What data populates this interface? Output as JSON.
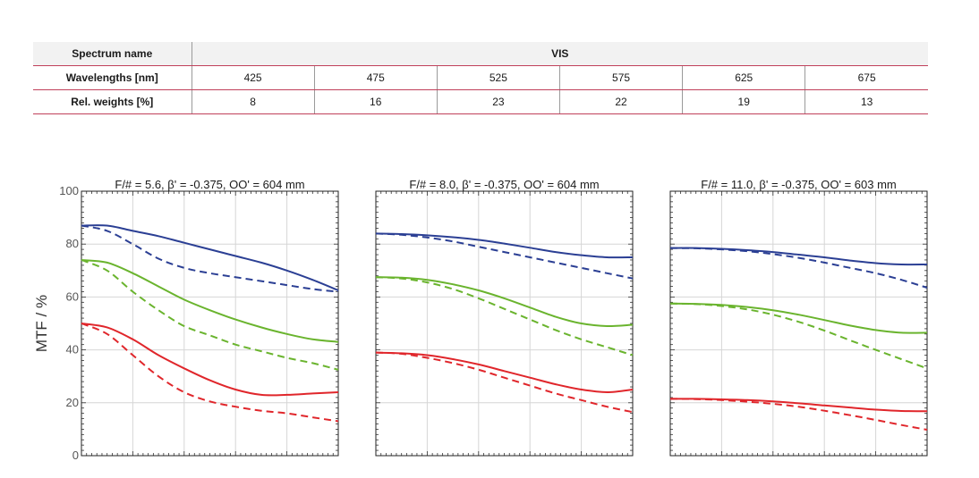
{
  "table": {
    "spectrum_label": "Spectrum name",
    "spectrum_value": "VIS",
    "wavelengths_label": "Wavelengths [nm]",
    "wavelengths": [
      "425",
      "475",
      "525",
      "575",
      "625",
      "675"
    ],
    "weights_label": "Rel. weights [%]",
    "weights": [
      "8",
      "16",
      "23",
      "22",
      "19",
      "13"
    ]
  },
  "chart_data": [
    {
      "type": "line",
      "title": "F/# = 5.6, β' = -0.375, OO' = 604 mm",
      "ylabel": "MTF / %",
      "ylim": [
        0,
        100
      ],
      "yticks": [
        "0",
        "20",
        "40",
        "60",
        "80",
        "100"
      ],
      "grid": true,
      "series": [
        {
          "color": "#2b3f94",
          "dash": false,
          "x": [
            0,
            0.1,
            0.2,
            0.3,
            0.4,
            0.5,
            0.6,
            0.7,
            0.8,
            0.9,
            1
          ],
          "values": [
            87,
            87,
            85,
            83,
            80.5,
            78,
            75.5,
            73,
            70,
            66.5,
            62.5
          ]
        },
        {
          "color": "#2b3f94",
          "dash": true,
          "x": [
            0,
            0.1,
            0.2,
            0.3,
            0.4,
            0.5,
            0.6,
            0.7,
            0.8,
            0.9,
            1
          ],
          "values": [
            87,
            85,
            80,
            74.5,
            71,
            69,
            67.5,
            66,
            64.5,
            63,
            62
          ]
        },
        {
          "color": "#6ab42e",
          "dash": false,
          "x": [
            0,
            0.1,
            0.2,
            0.3,
            0.4,
            0.5,
            0.6,
            0.7,
            0.8,
            0.9,
            1
          ],
          "values": [
            74,
            73,
            69,
            64,
            59,
            55,
            51.5,
            48.5,
            46,
            44,
            43
          ]
        },
        {
          "color": "#6ab42e",
          "dash": true,
          "x": [
            0,
            0.1,
            0.2,
            0.3,
            0.4,
            0.5,
            0.6,
            0.7,
            0.8,
            0.9,
            1
          ],
          "values": [
            74,
            70,
            62,
            55,
            49,
            45.5,
            42,
            39.5,
            37,
            35,
            32.5
          ]
        },
        {
          "color": "#e0262b",
          "dash": false,
          "x": [
            0,
            0.1,
            0.2,
            0.3,
            0.4,
            0.5,
            0.6,
            0.7,
            0.8,
            0.9,
            1
          ],
          "values": [
            50,
            48.5,
            44,
            38,
            33,
            28.5,
            25,
            23,
            23,
            23.5,
            24
          ]
        },
        {
          "color": "#e0262b",
          "dash": true,
          "x": [
            0,
            0.1,
            0.2,
            0.3,
            0.4,
            0.5,
            0.6,
            0.7,
            0.8,
            0.9,
            1
          ],
          "values": [
            50,
            46,
            38,
            30,
            24,
            20.5,
            18.5,
            17,
            16,
            14.5,
            13
          ]
        }
      ]
    },
    {
      "type": "line",
      "title": "F/# = 8.0, β' = -0.375, OO' = 604 mm",
      "ylim": [
        0,
        100
      ],
      "grid": true,
      "series": [
        {
          "color": "#2b3f94",
          "dash": false,
          "x": [
            0,
            0.1,
            0.2,
            0.3,
            0.4,
            0.5,
            0.6,
            0.7,
            0.8,
            0.9,
            1
          ],
          "values": [
            84,
            83.8,
            83.3,
            82.6,
            81.6,
            80.2,
            78.6,
            77,
            75.8,
            75,
            75
          ]
        },
        {
          "color": "#2b3f94",
          "dash": true,
          "x": [
            0,
            0.1,
            0.2,
            0.3,
            0.4,
            0.5,
            0.6,
            0.7,
            0.8,
            0.9,
            1
          ],
          "values": [
            84,
            83.5,
            82.5,
            81,
            79,
            77,
            75,
            73,
            71,
            69,
            67
          ]
        },
        {
          "color": "#6ab42e",
          "dash": false,
          "x": [
            0,
            0.1,
            0.2,
            0.3,
            0.4,
            0.5,
            0.6,
            0.7,
            0.8,
            0.9,
            1
          ],
          "values": [
            67.5,
            67.3,
            66.5,
            64.8,
            62.5,
            59.5,
            56,
            52.5,
            50,
            49,
            49.5
          ]
        },
        {
          "color": "#6ab42e",
          "dash": true,
          "x": [
            0,
            0.1,
            0.2,
            0.3,
            0.4,
            0.5,
            0.6,
            0.7,
            0.8,
            0.9,
            1
          ],
          "values": [
            67.5,
            67,
            65.5,
            63,
            59.5,
            55.5,
            51.5,
            47.5,
            44,
            41,
            38
          ]
        },
        {
          "color": "#e0262b",
          "dash": false,
          "x": [
            0,
            0.1,
            0.2,
            0.3,
            0.4,
            0.5,
            0.6,
            0.7,
            0.8,
            0.9,
            1
          ],
          "values": [
            39,
            38.7,
            38,
            36.5,
            34.5,
            32,
            29.5,
            27,
            25,
            24,
            25
          ]
        },
        {
          "color": "#e0262b",
          "dash": true,
          "x": [
            0,
            0.1,
            0.2,
            0.3,
            0.4,
            0.5,
            0.6,
            0.7,
            0.8,
            0.9,
            1
          ],
          "values": [
            39,
            38.5,
            37,
            35,
            32.5,
            29.5,
            26.5,
            23.5,
            21,
            18.5,
            16.5
          ]
        }
      ]
    },
    {
      "type": "line",
      "title": "F/# = 11.0, β' = -0.375, OO' = 603 mm",
      "ylim": [
        0,
        100
      ],
      "grid": true,
      "series": [
        {
          "color": "#2b3f94",
          "dash": false,
          "x": [
            0,
            0.1,
            0.2,
            0.3,
            0.4,
            0.5,
            0.6,
            0.7,
            0.8,
            0.9,
            1
          ],
          "values": [
            78.5,
            78.5,
            78.2,
            77.7,
            77,
            76,
            75,
            73.8,
            72.8,
            72.3,
            72.3
          ]
        },
        {
          "color": "#2b3f94",
          "dash": true,
          "x": [
            0,
            0.1,
            0.2,
            0.3,
            0.4,
            0.5,
            0.6,
            0.7,
            0.8,
            0.9,
            1
          ],
          "values": [
            78.5,
            78.4,
            78,
            77.3,
            76.2,
            74.8,
            73,
            71,
            69,
            66.5,
            63.5
          ]
        },
        {
          "color": "#6ab42e",
          "dash": false,
          "x": [
            0,
            0.1,
            0.2,
            0.3,
            0.4,
            0.5,
            0.6,
            0.7,
            0.8,
            0.9,
            1
          ],
          "values": [
            57.5,
            57.4,
            57,
            56.2,
            55,
            53.3,
            51.3,
            49.2,
            47.5,
            46.5,
            46.5
          ]
        },
        {
          "color": "#6ab42e",
          "dash": true,
          "x": [
            0,
            0.1,
            0.2,
            0.3,
            0.4,
            0.5,
            0.6,
            0.7,
            0.8,
            0.9,
            1
          ],
          "values": [
            57.5,
            57.3,
            56.6,
            55.3,
            53.3,
            50.6,
            47.3,
            43.6,
            40,
            36.5,
            33
          ]
        },
        {
          "color": "#e0262b",
          "dash": false,
          "x": [
            0,
            0.1,
            0.2,
            0.3,
            0.4,
            0.5,
            0.6,
            0.7,
            0.8,
            0.9,
            1
          ],
          "values": [
            21.5,
            21.5,
            21.3,
            21,
            20.5,
            19.8,
            19,
            18.2,
            17.4,
            16.9,
            16.8
          ]
        },
        {
          "color": "#e0262b",
          "dash": true,
          "x": [
            0,
            0.1,
            0.2,
            0.3,
            0.4,
            0.5,
            0.6,
            0.7,
            0.8,
            0.9,
            1
          ],
          "values": [
            21.5,
            21.4,
            21,
            20.4,
            19.6,
            18.5,
            17,
            15.3,
            13.5,
            11.6,
            9.8
          ]
        }
      ]
    }
  ]
}
